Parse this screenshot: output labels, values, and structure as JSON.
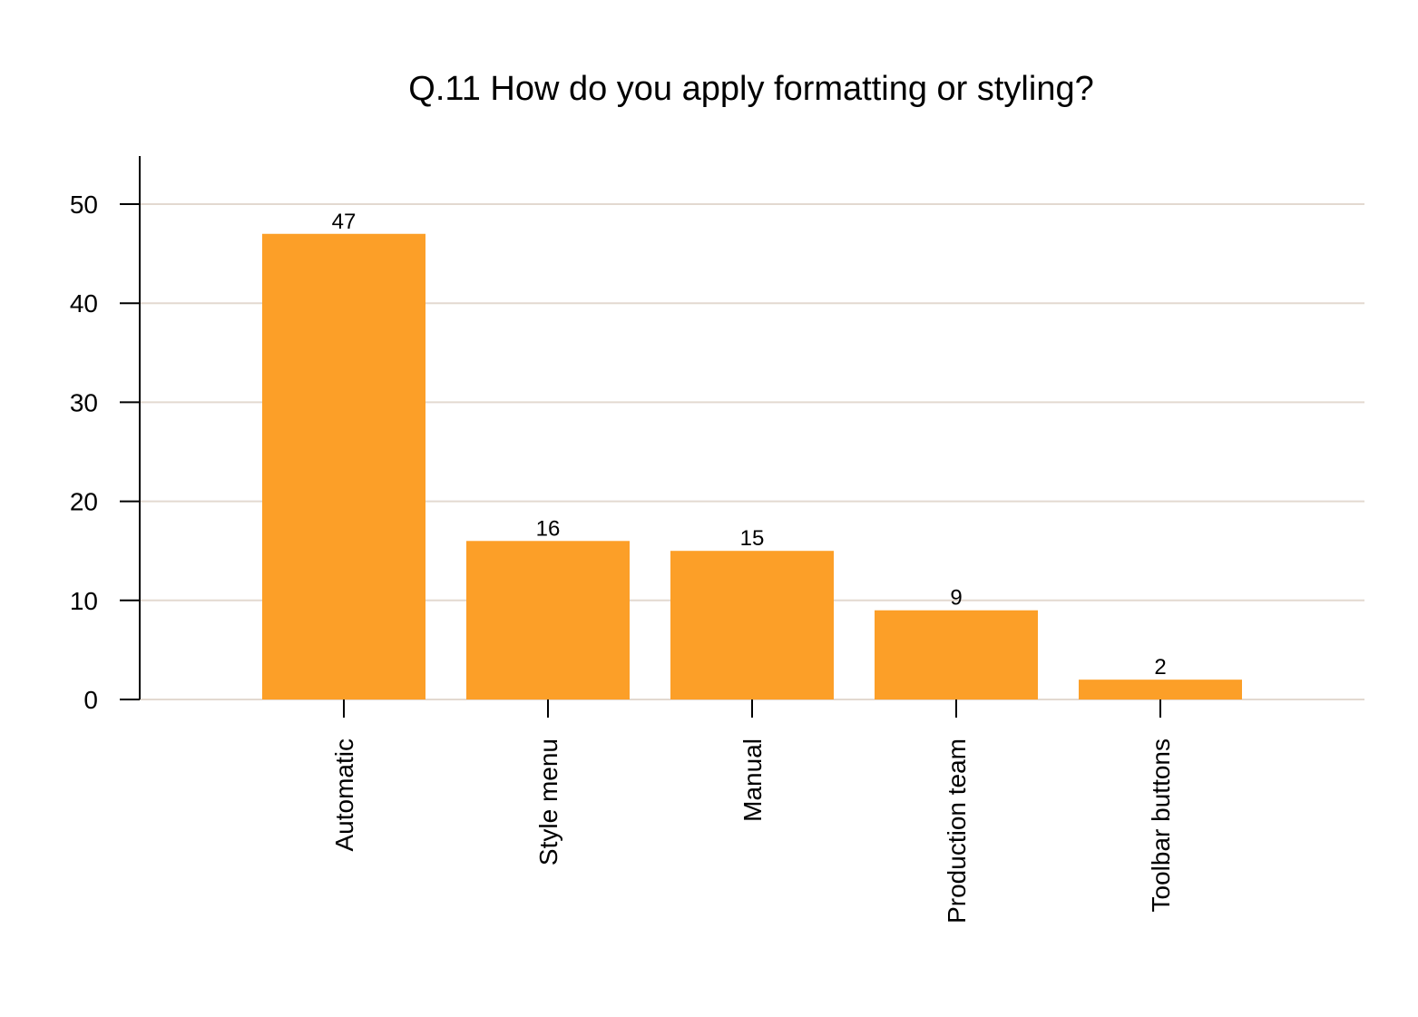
{
  "chart_data": {
    "type": "bar",
    "title": "Q.11 How do you apply formatting or styling?",
    "xlabel": "",
    "ylabel": "",
    "categories": [
      "Automatic",
      "Style menu",
      "Manual",
      "Production team",
      "Toolbar buttons"
    ],
    "values": [
      47,
      16,
      15,
      9,
      2
    ],
    "ylim": [
      0,
      55
    ],
    "yticks": [
      0,
      10,
      20,
      30,
      40,
      50
    ],
    "grid": true,
    "legend": "none",
    "data_labels": true,
    "colors": {
      "bar": "#FC9F28",
      "grid": "#E3D9D0",
      "axis": "#000000",
      "background": "#FFFFFF"
    }
  }
}
